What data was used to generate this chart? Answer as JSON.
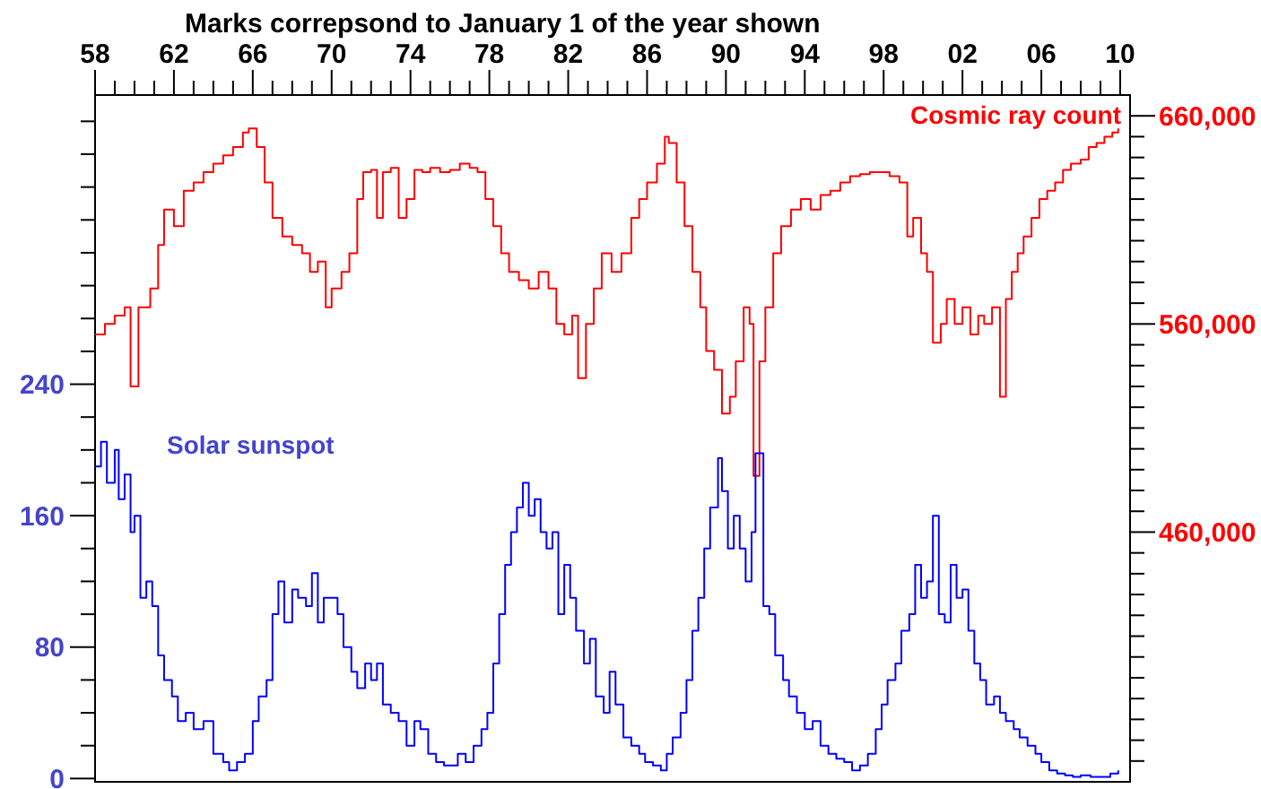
{
  "chart_data": {
    "type": "step",
    "title": "Marks correpsond to January 1  of the year shown",
    "xlim": [
      1958,
      2010.5
    ],
    "xticks": [
      {
        "value": 1958,
        "label": "58"
      },
      {
        "value": 1959,
        "label": null
      },
      {
        "value": 1960,
        "label": null
      },
      {
        "value": 1961,
        "label": null
      },
      {
        "value": 1962,
        "label": "62"
      },
      {
        "value": 1963,
        "label": null
      },
      {
        "value": 1964,
        "label": null
      },
      {
        "value": 1965,
        "label": null
      },
      {
        "value": 1966,
        "label": "66"
      },
      {
        "value": 1967,
        "label": null
      },
      {
        "value": 1968,
        "label": null
      },
      {
        "value": 1969,
        "label": null
      },
      {
        "value": 1970,
        "label": "70"
      },
      {
        "value": 1971,
        "label": null
      },
      {
        "value": 1972,
        "label": null
      },
      {
        "value": 1973,
        "label": null
      },
      {
        "value": 1974,
        "label": "74"
      },
      {
        "value": 1975,
        "label": null
      },
      {
        "value": 1976,
        "label": null
      },
      {
        "value": 1977,
        "label": null
      },
      {
        "value": 1978,
        "label": "78"
      },
      {
        "value": 1979,
        "label": null
      },
      {
        "value": 1980,
        "label": null
      },
      {
        "value": 1981,
        "label": null
      },
      {
        "value": 1982,
        "label": "82"
      },
      {
        "value": 1983,
        "label": null
      },
      {
        "value": 1984,
        "label": null
      },
      {
        "value": 1985,
        "label": null
      },
      {
        "value": 1986,
        "label": "86"
      },
      {
        "value": 1987,
        "label": null
      },
      {
        "value": 1988,
        "label": null
      },
      {
        "value": 1989,
        "label": null
      },
      {
        "value": 1990,
        "label": "90"
      },
      {
        "value": 1991,
        "label": null
      },
      {
        "value": 1992,
        "label": null
      },
      {
        "value": 1993,
        "label": null
      },
      {
        "value": 1994,
        "label": "94"
      },
      {
        "value": 1995,
        "label": null
      },
      {
        "value": 1996,
        "label": null
      },
      {
        "value": 1997,
        "label": null
      },
      {
        "value": 1998,
        "label": "98"
      },
      {
        "value": 1999,
        "label": null
      },
      {
        "value": 2000,
        "label": null
      },
      {
        "value": 2001,
        "label": null
      },
      {
        "value": 2002,
        "label": "02"
      },
      {
        "value": 2003,
        "label": null
      },
      {
        "value": 2004,
        "label": null
      },
      {
        "value": 2005,
        "label": null
      },
      {
        "value": 2006,
        "label": "06"
      },
      {
        "value": 2007,
        "label": null
      },
      {
        "value": 2008,
        "label": null
      },
      {
        "value": 2009,
        "label": null
      },
      {
        "value": 2010,
        "label": "10"
      }
    ],
    "ylim": [
      -2,
      416
    ],
    "yticks": [
      0,
      {
        "value": 20,
        "label": null
      },
      {
        "value": 40,
        "label": null
      },
      {
        "value": 60,
        "label": null
      },
      80,
      {
        "value": 100,
        "label": null
      },
      {
        "value": 120,
        "label": null
      },
      {
        "value": 140,
        "label": null
      },
      160,
      {
        "value": 180,
        "label": null
      },
      {
        "value": 200,
        "label": null
      },
      {
        "value": 220,
        "label": null
      },
      240,
      {
        "value": 260,
        "label": null
      },
      {
        "value": 280,
        "label": null
      },
      {
        "value": 300,
        "label": null
      },
      {
        "value": 320,
        "label": null
      },
      {
        "value": 340,
        "label": null
      },
      {
        "value": 360,
        "label": null
      },
      {
        "value": 380,
        "label": null
      },
      {
        "value": 400,
        "label": null
      }
    ],
    "y2lim": [
      340000,
      670000
    ],
    "y2ticks": [
      {
        "value": 350000,
        "label": null
      },
      {
        "value": 360000,
        "label": null
      },
      {
        "value": 370000,
        "label": null
      },
      {
        "value": 380000,
        "label": null
      },
      {
        "value": 390000,
        "label": null
      },
      {
        "value": 400000,
        "label": null
      },
      {
        "value": 410000,
        "label": null
      },
      {
        "value": 420000,
        "label": null
      },
      {
        "value": 430000,
        "label": null
      },
      {
        "value": 440000,
        "label": null
      },
      {
        "value": 450000,
        "label": null
      },
      {
        "value": 460000,
        "label": "460,000"
      },
      {
        "value": 470000,
        "label": null
      },
      {
        "value": 480000,
        "label": null
      },
      {
        "value": 490000,
        "label": null
      },
      {
        "value": 500000,
        "label": null
      },
      {
        "value": 510000,
        "label": null
      },
      {
        "value": 520000,
        "label": null
      },
      {
        "value": 530000,
        "label": null
      },
      {
        "value": 540000,
        "label": null
      },
      {
        "value": 550000,
        "label": null
      },
      {
        "value": 560000,
        "label": "560,000"
      },
      {
        "value": 570000,
        "label": null
      },
      {
        "value": 580000,
        "label": null
      },
      {
        "value": 590000,
        "label": null
      },
      {
        "value": 600000,
        "label": null
      },
      {
        "value": 610000,
        "label": null
      },
      {
        "value": 620000,
        "label": null
      },
      {
        "value": 630000,
        "label": null
      },
      {
        "value": 640000,
        "label": null
      },
      {
        "value": 650000,
        "label": null
      },
      {
        "value": 660000,
        "label": "660,000"
      }
    ],
    "series": [
      {
        "name": "Cosmic ray count",
        "color": "#ff0000",
        "axis": "y2",
        "x": [
          1958.0,
          1958.5,
          1959.0,
          1959.5,
          1959.8,
          1960.2,
          1960.8,
          1961.2,
          1961.5,
          1962.0,
          1962.5,
          1963.0,
          1963.5,
          1964.0,
          1964.5,
          1965.0,
          1965.5,
          1965.8,
          1966.2,
          1966.6,
          1967.0,
          1967.5,
          1968.0,
          1968.5,
          1968.9,
          1969.3,
          1969.7,
          1970.0,
          1970.5,
          1970.9,
          1971.3,
          1971.6,
          1972.0,
          1972.3,
          1972.6,
          1973.0,
          1973.4,
          1973.8,
          1974.2,
          1974.6,
          1975.0,
          1975.5,
          1976.0,
          1976.5,
          1977.0,
          1977.4,
          1977.8,
          1978.2,
          1978.6,
          1979.0,
          1979.5,
          1980.0,
          1980.5,
          1981.0,
          1981.4,
          1981.8,
          1982.2,
          1982.5,
          1982.9,
          1983.3,
          1983.7,
          1984.2,
          1984.7,
          1985.2,
          1985.6,
          1986.0,
          1986.5,
          1986.9,
          1987.1,
          1987.5,
          1987.9,
          1988.3,
          1988.7,
          1989.0,
          1989.4,
          1989.8,
          1990.2,
          1990.5,
          1990.9,
          1991.2,
          1991.4,
          1991.7,
          1992.0,
          1992.4,
          1992.8,
          1993.3,
          1993.8,
          1994.3,
          1994.8,
          1995.3,
          1995.8,
          1996.3,
          1996.8,
          1997.3,
          1997.8,
          1998.3,
          1998.8,
          1999.2,
          1999.5,
          1999.9,
          2000.2,
          2000.5,
          2000.9,
          2001.2,
          2001.6,
          2002.0,
          2002.4,
          2002.8,
          2003.1,
          2003.5,
          2003.9,
          2004.2,
          2004.5,
          2004.8,
          2005.1,
          2005.5,
          2005.9,
          2006.3,
          2006.7,
          2007.1,
          2007.5,
          2008.0,
          2008.4,
          2008.8,
          2009.2,
          2009.6,
          2009.9
        ],
        "values": [
          555000,
          560000,
          564000,
          568000,
          530000,
          568000,
          577000,
          598000,
          615000,
          607000,
          624000,
          628000,
          633000,
          637000,
          641000,
          645000,
          652000,
          654000,
          645000,
          628000,
          611000,
          602000,
          598000,
          594000,
          585000,
          590000,
          568000,
          577000,
          585000,
          594000,
          620000,
          633000,
          634000,
          611000,
          633000,
          635000,
          611000,
          620000,
          634000,
          633000,
          635000,
          633000,
          634000,
          637000,
          635000,
          633000,
          620000,
          607000,
          594000,
          585000,
          581000,
          577000,
          585000,
          577000,
          560000,
          555000,
          564000,
          534000,
          560000,
          577000,
          594000,
          585000,
          594000,
          611000,
          620000,
          628000,
          637000,
          650000,
          647000,
          628000,
          607000,
          585000,
          568000,
          547000,
          538000,
          517000,
          525000,
          542000,
          568000,
          560000,
          487000,
          542000,
          568000,
          594000,
          607000,
          615000,
          620000,
          615000,
          622000,
          624000,
          628000,
          631000,
          632000,
          633000,
          633000,
          631000,
          628000,
          602000,
          611000,
          594000,
          585000,
          551000,
          560000,
          572000,
          560000,
          568000,
          555000,
          564000,
          560000,
          568000,
          525000,
          572000,
          585000,
          594000,
          602000,
          611000,
          620000,
          624000,
          628000,
          634000,
          637000,
          639000,
          645000,
          647000,
          650000,
          652000,
          654000
        ]
      },
      {
        "name": "Solar sunspot",
        "color": "#0000ff",
        "axis": "y",
        "x": [
          1958.0,
          1958.3,
          1958.6,
          1959.0,
          1959.2,
          1959.5,
          1959.8,
          1960.0,
          1960.3,
          1960.6,
          1960.9,
          1961.2,
          1961.5,
          1961.9,
          1962.2,
          1962.6,
          1963.0,
          1963.5,
          1964.0,
          1964.5,
          1964.8,
          1965.2,
          1965.6,
          1966.0,
          1966.3,
          1966.7,
          1967.0,
          1967.3,
          1967.6,
          1968.0,
          1968.3,
          1968.7,
          1969.0,
          1969.3,
          1969.6,
          1970.0,
          1970.3,
          1970.6,
          1971.0,
          1971.3,
          1971.7,
          1972.0,
          1972.3,
          1972.6,
          1973.0,
          1973.4,
          1973.8,
          1974.2,
          1974.5,
          1974.9,
          1975.3,
          1975.7,
          1976.0,
          1976.4,
          1976.8,
          1977.2,
          1977.6,
          1977.9,
          1978.2,
          1978.5,
          1978.8,
          1979.1,
          1979.4,
          1979.7,
          1980.0,
          1980.3,
          1980.6,
          1980.9,
          1981.2,
          1981.5,
          1981.8,
          1982.1,
          1982.4,
          1982.8,
          1983.1,
          1983.4,
          1983.8,
          1984.1,
          1984.4,
          1984.8,
          1985.2,
          1985.6,
          1985.9,
          1986.3,
          1986.7,
          1987.0,
          1987.3,
          1987.7,
          1988.0,
          1988.3,
          1988.6,
          1988.9,
          1989.2,
          1989.6,
          1989.8,
          1990.1,
          1990.4,
          1990.7,
          1991.0,
          1991.3,
          1991.5,
          1991.9,
          1992.2,
          1992.5,
          1992.9,
          1993.2,
          1993.6,
          1994.0,
          1994.4,
          1994.8,
          1995.2,
          1995.6,
          1996.0,
          1996.4,
          1996.8,
          1997.2,
          1997.6,
          1997.9,
          1998.2,
          1998.6,
          1998.9,
          1999.3,
          1999.6,
          1999.9,
          2000.2,
          2000.5,
          2000.8,
          2001.1,
          2001.4,
          2001.7,
          2002.0,
          2002.3,
          2002.6,
          2002.9,
          2003.2,
          2003.6,
          2003.9,
          2004.2,
          2004.6,
          2004.9,
          2005.3,
          2005.7,
          2006.0,
          2006.4,
          2006.8,
          2007.2,
          2007.6,
          2008.0,
          2008.5,
          2009.0,
          2009.5,
          2009.9
        ],
        "values": [
          190,
          205,
          180,
          200,
          170,
          185,
          150,
          160,
          110,
          120,
          105,
          75,
          60,
          50,
          35,
          40,
          30,
          35,
          15,
          10,
          5,
          10,
          15,
          35,
          50,
          60,
          100,
          120,
          95,
          115,
          110,
          105,
          125,
          95,
          110,
          110,
          100,
          80,
          65,
          55,
          70,
          60,
          70,
          45,
          40,
          35,
          20,
          35,
          30,
          15,
          10,
          8,
          8,
          15,
          10,
          20,
          30,
          40,
          70,
          100,
          130,
          150,
          165,
          180,
          160,
          170,
          150,
          140,
          150,
          100,
          130,
          110,
          90,
          70,
          85,
          50,
          40,
          65,
          45,
          25,
          20,
          15,
          10,
          8,
          5,
          15,
          25,
          40,
          60,
          90,
          110,
          140,
          165,
          195,
          175,
          140,
          160,
          140,
          120,
          150,
          198,
          105,
          100,
          75,
          60,
          50,
          40,
          30,
          35,
          20,
          15,
          12,
          10,
          5,
          8,
          15,
          30,
          45,
          60,
          70,
          90,
          100,
          130,
          110,
          120,
          160,
          100,
          95,
          130,
          110,
          115,
          90,
          70,
          60,
          45,
          50,
          40,
          35,
          30,
          25,
          20,
          15,
          10,
          5,
          3,
          2,
          1,
          2,
          1,
          1,
          3,
          5
        ]
      }
    ]
  }
}
